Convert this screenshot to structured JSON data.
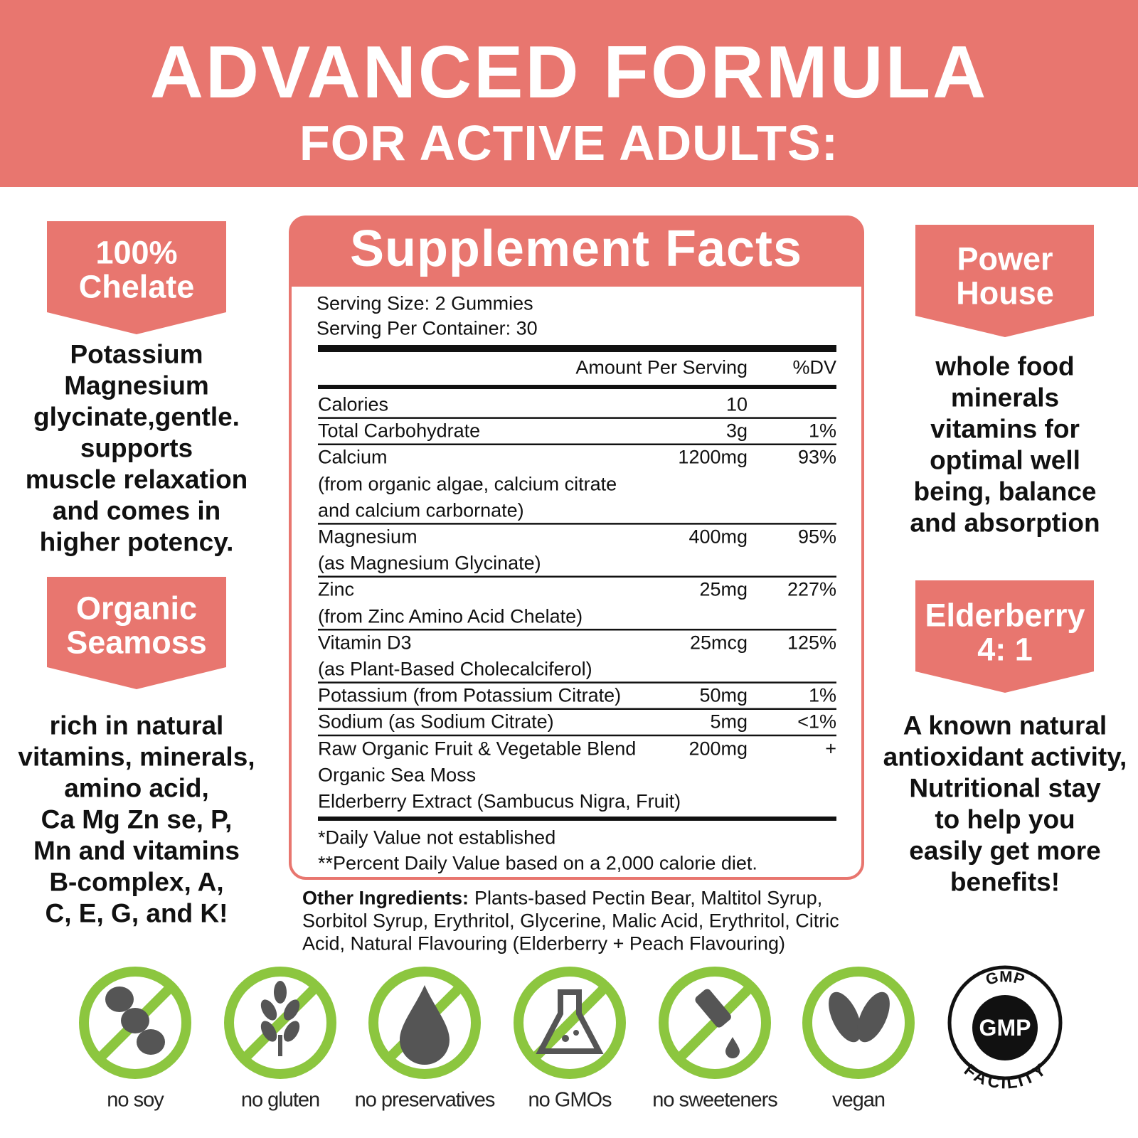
{
  "header": {
    "title": "ADVANCED FORMULA",
    "subtitle": "FOR ACTIVE ADULTS:"
  },
  "left_panels": [
    {
      "badge": [
        "100%",
        "Chelate"
      ],
      "lines": [
        "Potassium",
        "Magnesium",
        "glycinate,gentle.",
        "supports",
        "muscle relaxation",
        "and comes in",
        "higher potency."
      ]
    },
    {
      "badge": [
        "Organic",
        "Seamoss"
      ],
      "lines": [
        "rich in natural",
        "vitamins, minerals,",
        "amino acid,",
        "Ca Mg Zn se, P,",
        "Mn and vitamins",
        "B-complex, A,",
        "C, E, G, and K!"
      ]
    }
  ],
  "right_panels": [
    {
      "badge": [
        "Power",
        "House"
      ],
      "lines": [
        "whole food",
        "minerals",
        "vitamins for",
        "optimal well",
        "being, balance",
        "and absorption"
      ]
    },
    {
      "badge": [
        "Elderberry",
        "4: 1"
      ],
      "lines": [
        "A known natural",
        "antioxidant activity,",
        "Nutritional stay",
        "to help you",
        "easily get more",
        "benefits!"
      ]
    }
  ],
  "table": {
    "title": "Supplement Facts",
    "serving": [
      "Serving Size: 2 Gummies",
      "Serving Per Container: 30"
    ],
    "columns": [
      "Amount Per Serving",
      "%DV"
    ],
    "rows": [
      {
        "name": [
          "Calories"
        ],
        "amount": "10"
      },
      {
        "name": [
          "Total Carbohydrate"
        ],
        "amount": "3g",
        "dv": "1%"
      },
      {
        "name": [
          "Calcium",
          "(from organic algae, calcium citrate",
          "and calcium carbornate)"
        ],
        "amount": "1200mg",
        "dv": "93%"
      },
      {
        "name": [
          "Magnesium",
          "(as Magnesium Glycinate)"
        ],
        "amount": "400mg",
        "dv": "95%"
      },
      {
        "name": [
          "Zinc",
          "(from Zinc Amino Acid Chelate)"
        ],
        "amount": "25mg",
        "dv": "227%"
      },
      {
        "name": [
          "Vitamin D3",
          "(as Plant-Based Cholecalciferol)"
        ],
        "amount": "25mcg",
        "dv": "125%"
      },
      {
        "name": [
          "Potassium (from Potassium Citrate)"
        ],
        "amount": "50mg",
        "dv": "1%"
      },
      {
        "name": [
          "Sodium (as Sodium Citrate)"
        ],
        "amount": "5mg",
        "dv": "<1%"
      },
      {
        "name": [
          "Raw Organic Fruit & Vegetable Blend",
          "Organic Sea Moss",
          "Elderberry Extract (Sambucus Nigra, Fruit)"
        ],
        "amount": "200mg",
        "dv": "+"
      }
    ],
    "footnotes": [
      "*Daily Value not established",
      "**Percent Daily Value based on a 2,000 calorie diet."
    ]
  },
  "other_ingredients": {
    "label": "Other Ingredients:",
    "lines": [
      "Plants-based Pectin Bear, Maltitol Syrup,",
      "Sorbitol Syrup, Erythritol, Glycerine, Malic Acid, Erythritol, Citric",
      "Acid, Natural Flavouring (Elderberry + Peach Flavouring)"
    ]
  },
  "badges": {
    "labels": [
      "no soy",
      "no gluten",
      "no preservatives",
      "no GMOs",
      "no sweeteners",
      "vegan"
    ],
    "gmp": {
      "top": "GMP",
      "center": "GMP",
      "bottom": "FACILITY"
    }
  }
}
